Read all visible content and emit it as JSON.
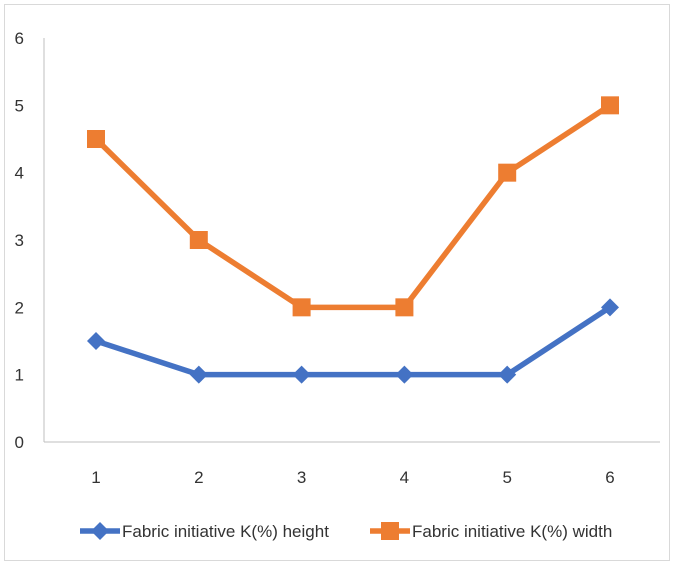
{
  "chart_data": {
    "type": "line",
    "x": [
      1,
      2,
      3,
      4,
      5,
      6
    ],
    "series": [
      {
        "name": "Fabric initiative Κ(%) height",
        "values": [
          1.5,
          1,
          1,
          1,
          1,
          2
        ],
        "color": "#4472C4",
        "marker": "diamond"
      },
      {
        "name": "Fabric initiative Κ(%) width",
        "values": [
          4.5,
          3,
          2,
          2,
          4,
          5
        ],
        "color": "#ED7D31",
        "marker": "square"
      }
    ],
    "xlabel": "",
    "ylabel": "",
    "ylim": [
      0,
      6
    ],
    "yticks": [
      0,
      1,
      2,
      3,
      4,
      5,
      6
    ],
    "xticks": [
      1,
      2,
      3,
      4,
      5,
      6
    ],
    "grid": false,
    "legend_position": "bottom"
  }
}
